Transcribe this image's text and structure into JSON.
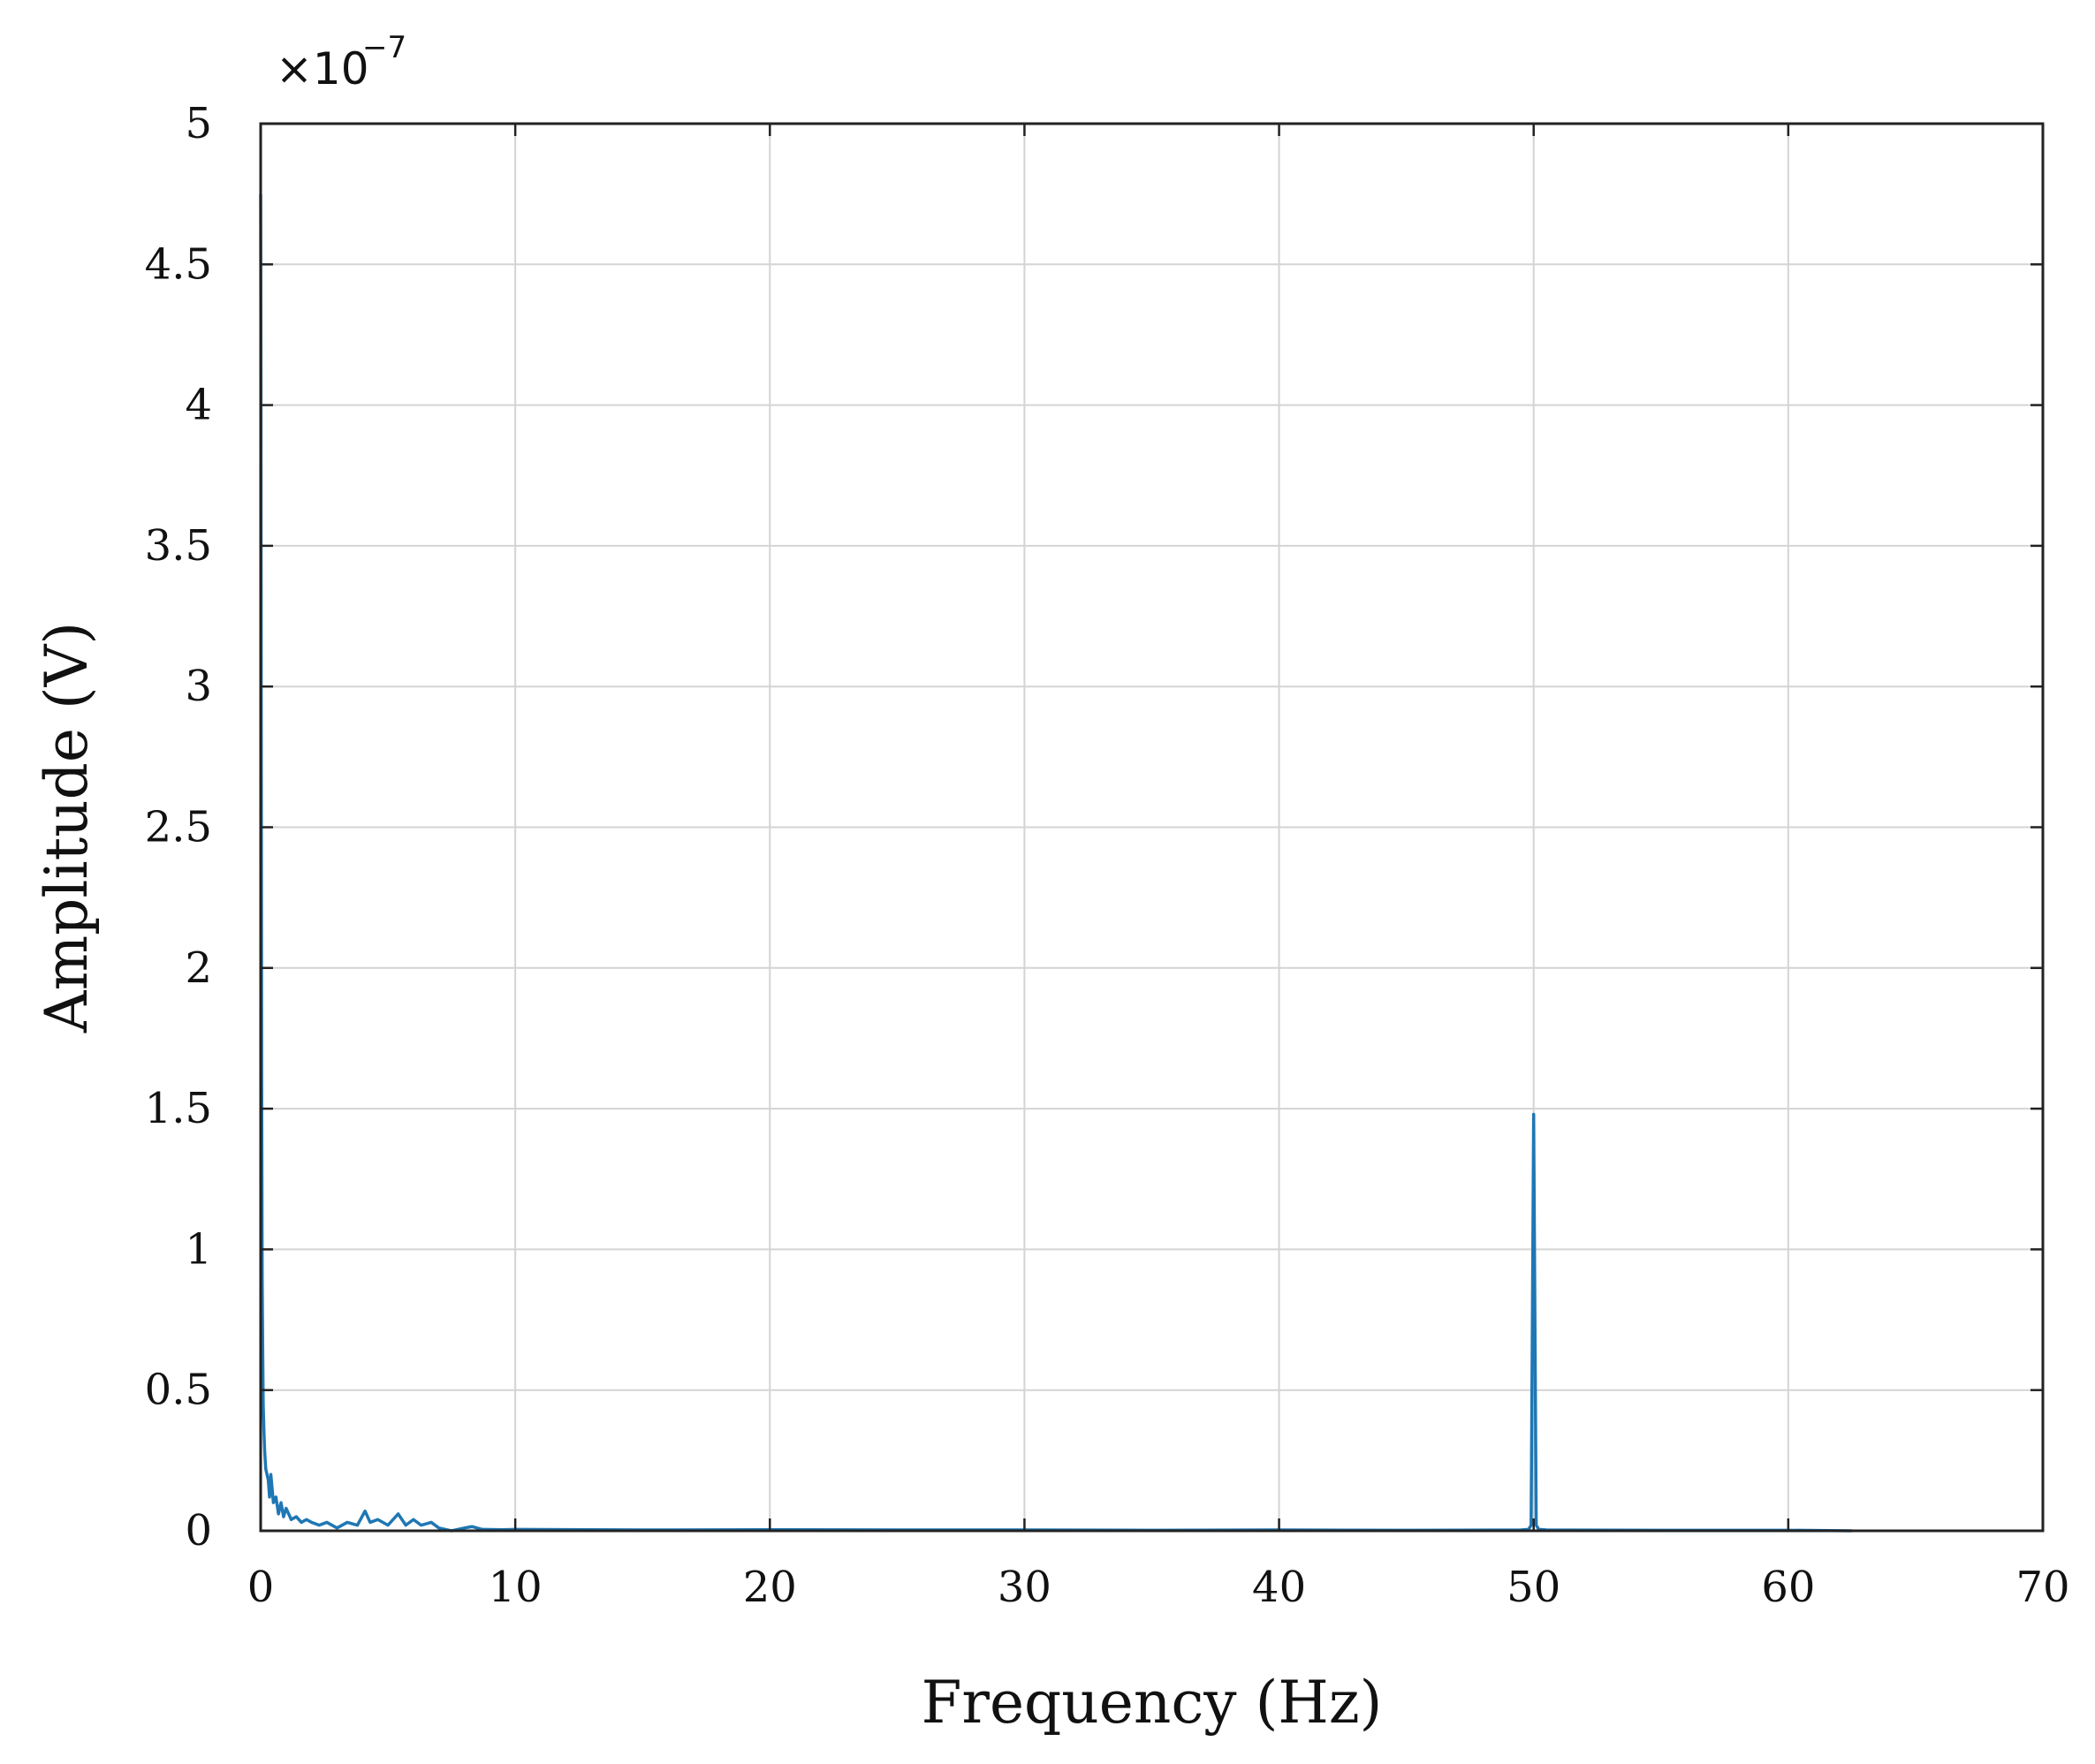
{
  "chart_data": {
    "type": "line",
    "title": "",
    "xlabel": "Frequency (Hz)",
    "ylabel": "Amplitude (V)",
    "y_multiplier": {
      "base": "×10",
      "exponent": "−7"
    },
    "xlim": [
      0,
      70
    ],
    "ylim": [
      0,
      5
    ],
    "grid": true,
    "x_ticks": [
      "0",
      "10",
      "20",
      "30",
      "40",
      "50",
      "60",
      "70"
    ],
    "x_tick_values": [
      0,
      10,
      20,
      30,
      40,
      50,
      60,
      70
    ],
    "y_ticks": [
      "0",
      "0.5",
      "1",
      "1.5",
      "2",
      "2.5",
      "3",
      "3.5",
      "4",
      "4.5",
      "5"
    ],
    "y_tick_values": [
      0,
      0.5,
      1,
      1.5,
      2,
      2.5,
      3,
      3.5,
      4,
      4.5,
      5
    ],
    "series": [
      {
        "color": "#1f77b4",
        "x": [
          0.0,
          0.01,
          0.02,
          0.04,
          0.06,
          0.08,
          0.1,
          0.13,
          0.16,
          0.2,
          0.25,
          0.3,
          0.35,
          0.4,
          0.5,
          0.6,
          0.7,
          0.8,
          0.9,
          1.0,
          1.2,
          1.4,
          1.6,
          1.8,
          2.0,
          2.3,
          2.6,
          3.0,
          3.4,
          3.8,
          4.1,
          4.3,
          4.6,
          5.0,
          5.4,
          5.7,
          6.0,
          6.3,
          6.7,
          7.0,
          7.5,
          8.0,
          8.3,
          8.7,
          9.5,
          10.0,
          15.0,
          20.0,
          25.0,
          30.0,
          35.0,
          40.0,
          45.0,
          49.5,
          49.8,
          49.9,
          50.0,
          50.1,
          50.2,
          50.5,
          55.0,
          60.0,
          62.5
        ],
        "y": [
          4.75,
          4.2,
          3.0,
          1.6,
          0.9,
          0.65,
          0.45,
          0.35,
          0.28,
          0.22,
          0.2,
          0.18,
          0.12,
          0.2,
          0.1,
          0.12,
          0.06,
          0.1,
          0.05,
          0.08,
          0.04,
          0.05,
          0.03,
          0.04,
          0.03,
          0.02,
          0.03,
          0.01,
          0.03,
          0.02,
          0.07,
          0.03,
          0.04,
          0.02,
          0.06,
          0.02,
          0.04,
          0.02,
          0.03,
          0.01,
          0.0,
          0.01,
          0.015,
          0.005,
          0.004,
          0.005,
          0.003,
          0.004,
          0.003,
          0.003,
          0.002,
          0.003,
          0.002,
          0.003,
          0.005,
          0.02,
          1.48,
          0.02,
          0.005,
          0.003,
          0.002,
          0.002,
          0.0
        ]
      }
    ]
  }
}
